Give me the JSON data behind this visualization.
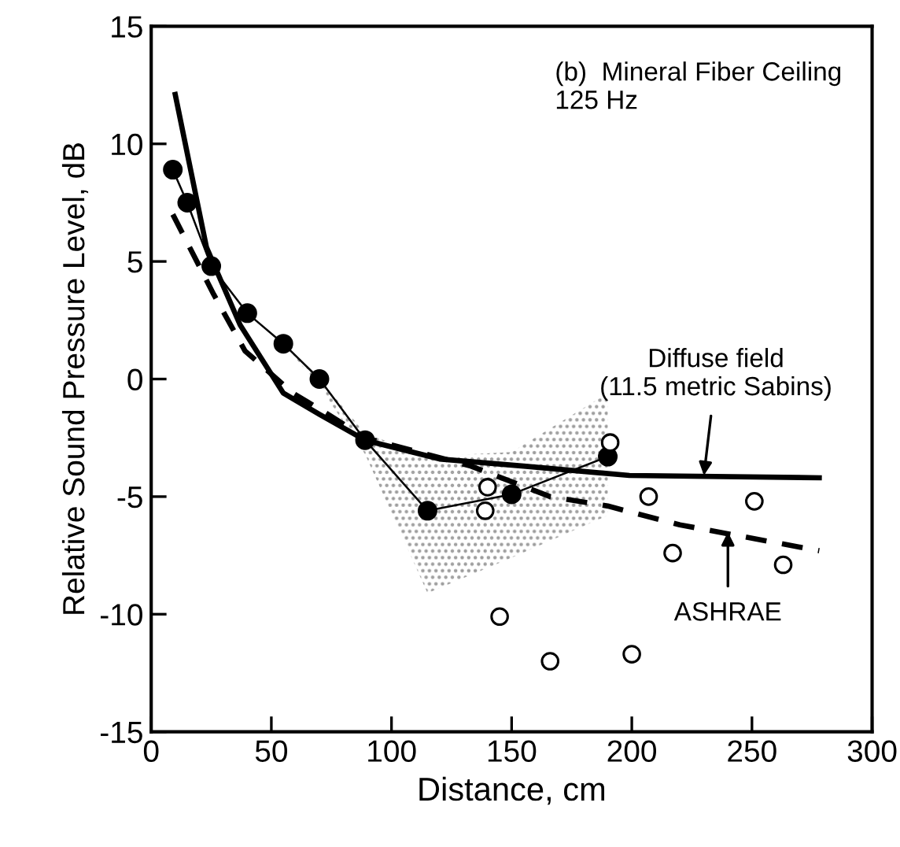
{
  "chart_data": {
    "type": "line",
    "xlabel": "Distance, cm",
    "ylabel": "Relative Sound Pressure Level, dB",
    "xlim": [
      0,
      300
    ],
    "xticks": [
      0,
      50,
      100,
      150,
      200,
      250,
      300
    ],
    "ylim": [
      -15,
      15
    ],
    "yticks": [
      -15,
      -10,
      -5,
      0,
      5,
      10,
      15
    ],
    "grid": false,
    "legend": false,
    "series": [
      {
        "color": "#000000",
        "marker": "circle",
        "line_style": "solid",
        "x": [
          9,
          15,
          25,
          40,
          55,
          70,
          89,
          115,
          150,
          190
        ],
        "values": [
          8.9,
          7.5,
          4.8,
          2.8,
          1.5,
          0,
          -2.6,
          -5.6,
          -4.9,
          -3.3
        ],
        "lower": [
          8.9,
          7.5,
          4.8,
          2.8,
          1.5,
          -0.3,
          -3.2,
          -9.1,
          -7.6,
          -5.8
        ],
        "upper": [
          8.9,
          7.5,
          4.8,
          2.8,
          1.5,
          0,
          -2.3,
          -3.3,
          -3.1,
          -0.6
        ]
      },
      {
        "type": "scatter",
        "color": "#000000",
        "marker": "circle",
        "x": [
          191,
          140,
          139,
          207,
          251,
          217,
          263,
          145,
          166,
          200
        ],
        "values": [
          -2.7,
          -4.6,
          -5.6,
          -5.0,
          -5.2,
          -7.4,
          -7.9,
          -10.1,
          -12.0,
          -11.7
        ]
      },
      {
        "color": "#000000",
        "marker": "none",
        "line_style": "solid",
        "x": [
          10,
          23,
          37,
          55,
          70,
          89,
          120,
          155,
          199,
          278
        ],
        "values": [
          12.1,
          5.6,
          2.3,
          -0.6,
          -1.5,
          -2.6,
          -3.4,
          -3.7,
          -4.1,
          -4.2
        ]
      },
      {
        "color": "#000000",
        "marker": "none",
        "line_style": "dashed",
        "x": [
          9,
          26,
          39,
          59,
          72,
          89,
          133,
          166,
          190,
          220,
          278
        ],
        "values": [
          7.0,
          3.6,
          1.2,
          -0.6,
          -1.4,
          -2.5,
          -3.7,
          -5.0,
          -5.4,
          -6.2,
          -7.3
        ]
      }
    ],
    "annotations": [
      "(b)  Mineral Fiber Ceiling\n125 Hz",
      {
        "text": "Diffuse field\n(11.5 metric Sabins)",
        "x": 230,
        "y": -4.1
      },
      {
        "text": "ASHRAE",
        "x": 240,
        "y": -6.5
      }
    ]
  }
}
